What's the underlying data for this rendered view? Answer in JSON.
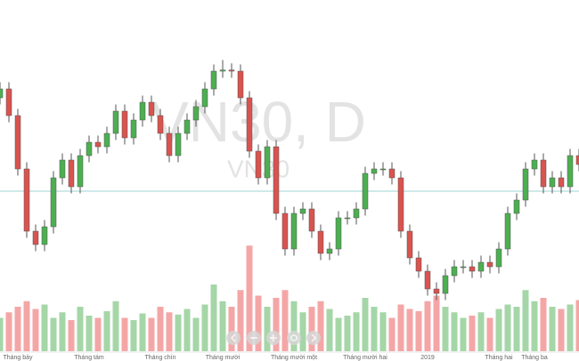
{
  "chart_data": {
    "type": "candlestick",
    "watermark": "VN30, D",
    "subtitle": "VN30",
    "categories": [
      null,
      null,
      "Tháng bảy",
      null,
      null,
      null,
      null,
      null,
      null,
      null,
      "Tháng tám",
      null,
      null,
      null,
      null,
      null,
      null,
      null,
      "Tháng chín",
      null,
      null,
      null,
      null,
      null,
      null,
      "Tháng mười",
      null,
      null,
      null,
      null,
      null,
      null,
      null,
      "Tháng mười một",
      null,
      null,
      null,
      null,
      null,
      null,
      null,
      "Tháng mười hai",
      null,
      null,
      null,
      null,
      null,
      null,
      "2019",
      null,
      null,
      null,
      null,
      null,
      null,
      null,
      "Tháng hai",
      null,
      null,
      null,
      "Tháng ba",
      null,
      null,
      null,
      null,
      null
    ],
    "open": [
      960,
      968,
      944,
      896,
      840,
      828,
      844,
      888,
      904,
      880,
      908,
      920,
      916,
      928,
      948,
      924,
      940,
      956,
      944,
      928,
      908,
      928,
      940,
      952,
      968,
      984,
      985,
      984,
      960,
      912,
      888,
      916,
      856,
      824,
      856,
      860,
      840,
      820,
      824,
      852,
      852,
      860,
      892,
      896,
      896,
      888,
      840,
      816,
      804,
      788,
      784,
      800,
      808,
      808,
      804,
      812,
      808,
      824,
      856,
      868,
      896,
      904,
      880,
      888,
      880,
      908
    ],
    "high": [
      974,
      974,
      950,
      902,
      846,
      850,
      894,
      910,
      910,
      914,
      926,
      926,
      934,
      954,
      954,
      946,
      962,
      962,
      950,
      934,
      934,
      946,
      958,
      974,
      990,
      994,
      991,
      990,
      966,
      918,
      922,
      922,
      862,
      862,
      866,
      866,
      846,
      830,
      858,
      858,
      866,
      898,
      902,
      902,
      902,
      894,
      846,
      822,
      810,
      794,
      806,
      814,
      814,
      814,
      818,
      818,
      830,
      862,
      874,
      902,
      910,
      910,
      894,
      894,
      914,
      914
    ],
    "low": [
      954,
      938,
      890,
      834,
      822,
      822,
      838,
      882,
      874,
      874,
      902,
      910,
      910,
      922,
      918,
      918,
      934,
      938,
      922,
      902,
      902,
      922,
      934,
      946,
      962,
      978,
      978,
      954,
      906,
      882,
      882,
      850,
      818,
      818,
      850,
      834,
      814,
      814,
      818,
      846,
      846,
      854,
      886,
      890,
      882,
      834,
      810,
      798,
      782,
      778,
      778,
      794,
      802,
      798,
      798,
      802,
      802,
      818,
      850,
      862,
      890,
      874,
      874,
      874,
      874,
      894
    ],
    "close": [
      968,
      944,
      896,
      840,
      828,
      844,
      888,
      904,
      880,
      908,
      920,
      916,
      928,
      948,
      924,
      940,
      956,
      944,
      928,
      908,
      928,
      940,
      952,
      968,
      984,
      985,
      984,
      960,
      912,
      888,
      916,
      856,
      824,
      856,
      860,
      840,
      820,
      824,
      852,
      852,
      860,
      892,
      896,
      896,
      888,
      840,
      816,
      804,
      788,
      784,
      800,
      808,
      808,
      804,
      812,
      808,
      824,
      856,
      868,
      896,
      904,
      880,
      888,
      880,
      908,
      900
    ],
    "volume": [
      30,
      35,
      40,
      45,
      38,
      42,
      30,
      35,
      28,
      40,
      32,
      30,
      36,
      45,
      30,
      28,
      34,
      30,
      40,
      35,
      33,
      38,
      30,
      42,
      60,
      45,
      40,
      55,
      95,
      50,
      40,
      48,
      55,
      45,
      35,
      40,
      45,
      38,
      30,
      32,
      35,
      48,
      40,
      35,
      30,
      42,
      38,
      36,
      45,
      50,
      40,
      35,
      30,
      32,
      35,
      30,
      38,
      42,
      40,
      55,
      45,
      48,
      40,
      38,
      42,
      46
    ],
    "ylim": [
      760,
      1000
    ],
    "volume_lim": [
      0,
      100
    ],
    "price_line": 876,
    "up_color": "#4caf50",
    "down_color": "#d9534f",
    "volume_up_color": "#a5d6a7",
    "volume_down_color": "#f4a6a6",
    "price_line_color": "#9fd3d3"
  }
}
